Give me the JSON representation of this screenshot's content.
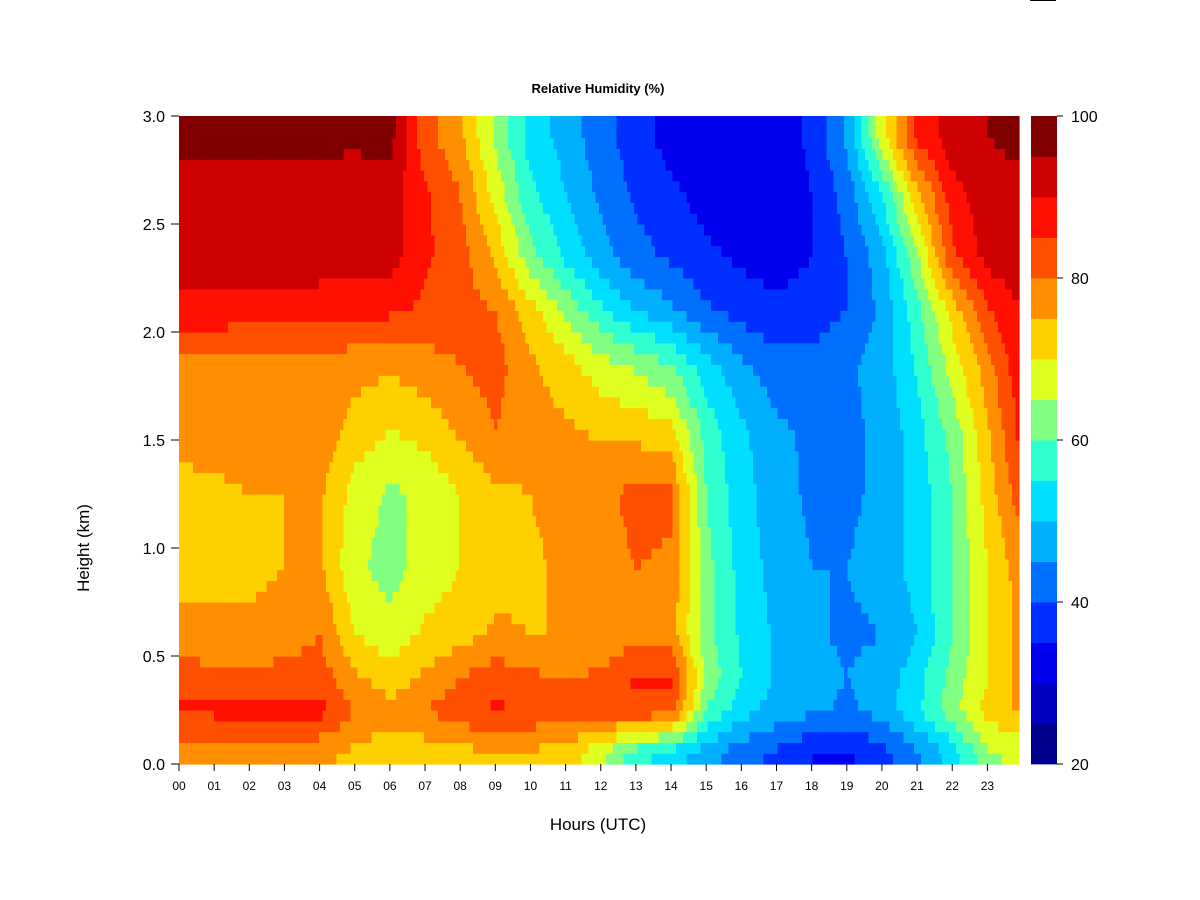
{
  "chart_data": {
    "type": "heatmap",
    "title": "Relative Humidity (%)",
    "xlabel": "Hours (UTC)",
    "ylabel": "Height (km)",
    "x_unit": "hours UTC",
    "y_unit": "km",
    "xlim": [
      0,
      23.9
    ],
    "ylim": [
      0,
      3.0
    ],
    "x_ticks": [
      {
        "value": 0,
        "label": "00"
      },
      {
        "value": 1,
        "label": "01"
      },
      {
        "value": 2,
        "label": "02"
      },
      {
        "value": 3,
        "label": "03"
      },
      {
        "value": 4,
        "label": "04"
      },
      {
        "value": 5,
        "label": "05"
      },
      {
        "value": 6,
        "label": "06"
      },
      {
        "value": 7,
        "label": "07"
      },
      {
        "value": 8,
        "label": "08"
      },
      {
        "value": 9,
        "label": "09"
      },
      {
        "value": 10,
        "label": "10"
      },
      {
        "value": 11,
        "label": "11"
      },
      {
        "value": 12,
        "label": "12"
      },
      {
        "value": 13,
        "label": "13"
      },
      {
        "value": 14,
        "label": "14"
      },
      {
        "value": 15,
        "label": "15"
      },
      {
        "value": 16,
        "label": "16"
      },
      {
        "value": 17,
        "label": "17"
      },
      {
        "value": 18,
        "label": "18"
      },
      {
        "value": 19,
        "label": "19"
      },
      {
        "value": 20,
        "label": "20"
      },
      {
        "value": 21,
        "label": "21"
      },
      {
        "value": 22,
        "label": "22"
      },
      {
        "value": 23,
        "label": "23"
      }
    ],
    "y_ticks": [
      {
        "value": 0.0,
        "label": "0.0"
      },
      {
        "value": 0.5,
        "label": "0.5"
      },
      {
        "value": 1.0,
        "label": "1.0"
      },
      {
        "value": 1.5,
        "label": "1.5"
      },
      {
        "value": 2.0,
        "label": "2.0"
      },
      {
        "value": 2.5,
        "label": "2.5"
      },
      {
        "value": 3.0,
        "label": "3.0"
      }
    ],
    "colorbar": {
      "range": [
        20,
        100
      ],
      "ticks": [
        {
          "value": 20,
          "label": "20"
        },
        {
          "value": 40,
          "label": "40"
        },
        {
          "value": 60,
          "label": "60"
        },
        {
          "value": 80,
          "label": "80"
        },
        {
          "value": 100,
          "label": "100"
        }
      ],
      "levels": [
        {
          "from": 20,
          "to": 25,
          "color": "#00008f"
        },
        {
          "from": 25,
          "to": 30,
          "color": "#0000c0"
        },
        {
          "from": 30,
          "to": 35,
          "color": "#0000ef"
        },
        {
          "from": 35,
          "to": 40,
          "color": "#0030ff"
        },
        {
          "from": 40,
          "to": 45,
          "color": "#0070ff"
        },
        {
          "from": 45,
          "to": 50,
          "color": "#00b0ff"
        },
        {
          "from": 50,
          "to": 55,
          "color": "#00dfff"
        },
        {
          "from": 55,
          "to": 60,
          "color": "#30ffcf"
        },
        {
          "from": 60,
          "to": 65,
          "color": "#80ff80"
        },
        {
          "from": 65,
          "to": 70,
          "color": "#dfff20"
        },
        {
          "from": 70,
          "to": 75,
          "color": "#ffd000"
        },
        {
          "from": 75,
          "to": 80,
          "color": "#ff8f00"
        },
        {
          "from": 80,
          "to": 85,
          "color": "#ff5000"
        },
        {
          "from": 85,
          "to": 90,
          "color": "#ff1000"
        },
        {
          "from": 90,
          "to": 95,
          "color": "#cf0000"
        },
        {
          "from": 95,
          "to": 100,
          "color": "#800000"
        }
      ]
    },
    "heights_km": [
      0.05,
      0.25,
      0.4,
      0.6,
      0.9,
      1.25,
      1.55,
      1.85,
      2.1,
      2.35,
      2.65,
      2.9
    ],
    "rows": [
      {
        "height_km": 0.05,
        "hours": [
          0,
          1,
          2,
          3,
          4,
          5,
          6,
          7,
          8,
          9,
          10,
          11,
          12,
          13,
          14,
          15,
          16,
          17,
          18,
          19,
          20,
          21,
          22,
          23,
          23.9
        ],
        "values": [
          77,
          78,
          79,
          78,
          76,
          74,
          72,
          72,
          73,
          75,
          74,
          73,
          66,
          57,
          52,
          47,
          42,
          39,
          35,
          34,
          38,
          44,
          52,
          64,
          66
        ]
      },
      {
        "height_km": 0.25,
        "hours": [
          0,
          1,
          2,
          3,
          4,
          5,
          6,
          7,
          8,
          9,
          10,
          11,
          12,
          13,
          14,
          15,
          16,
          17,
          18,
          19,
          20,
          21,
          22,
          23,
          23.9
        ],
        "values": [
          86,
          86,
          86,
          86,
          87,
          80,
          77,
          80,
          83,
          86,
          84,
          82,
          82,
          84,
          83,
          60,
          52,
          48,
          46,
          44,
          47,
          54,
          63,
          72,
          76
        ]
      },
      {
        "height_km": 0.4,
        "hours": [
          0,
          1,
          2,
          3,
          4,
          5,
          6,
          7,
          8,
          9,
          10,
          11,
          12,
          13,
          14,
          15,
          16,
          17,
          18,
          19,
          20,
          21,
          22,
          23,
          23.9
        ],
        "values": [
          83,
          82,
          82,
          82,
          83,
          76,
          72,
          76,
          80,
          83,
          81,
          80,
          81,
          86,
          86,
          64,
          55,
          49,
          47,
          45,
          47,
          53,
          62,
          70,
          76
        ]
      },
      {
        "height_km": 0.6,
        "hours": [
          0,
          1,
          2,
          3,
          4,
          5,
          6,
          7,
          8,
          9,
          10,
          11,
          12,
          13,
          14,
          15,
          16,
          17,
          18,
          19,
          20,
          21,
          22,
          23,
          23.9
        ],
        "values": [
          76,
          76,
          76,
          77,
          80,
          70,
          67,
          71,
          73,
          76,
          75,
          75,
          76,
          78,
          77,
          62,
          54,
          49,
          46,
          44,
          45,
          50,
          60,
          70,
          76
        ]
      },
      {
        "height_km": 0.9,
        "hours": [
          0,
          1,
          2,
          3,
          4,
          5,
          6,
          7,
          8,
          9,
          10,
          11,
          12,
          13,
          14,
          15,
          16,
          17,
          18,
          19,
          20,
          21,
          22,
          23,
          23.9
        ],
        "values": [
          74,
          74,
          74,
          75,
          76,
          66,
          63,
          67,
          70,
          73,
          74,
          76,
          77,
          80,
          79,
          62,
          53,
          48,
          45,
          45,
          47,
          52,
          60,
          70,
          77
        ]
      },
      {
        "height_km": 1.25,
        "hours": [
          0,
          1,
          2,
          3,
          4,
          5,
          6,
          7,
          8,
          9,
          10,
          11,
          12,
          13,
          14,
          15,
          16,
          17,
          18,
          19,
          20,
          21,
          22,
          23,
          23.9
        ],
        "values": [
          74,
          74,
          75,
          75,
          76,
          68,
          64,
          66,
          70,
          74,
          75,
          77,
          78,
          82,
          81,
          60,
          52,
          47,
          44,
          44,
          46,
          52,
          60,
          72,
          82
        ]
      },
      {
        "height_km": 1.55,
        "hours": [
          0,
          1,
          2,
          3,
          4,
          5,
          6,
          7,
          8,
          9,
          10,
          11,
          12,
          13,
          14,
          15,
          16,
          17,
          18,
          19,
          20,
          21,
          22,
          23,
          23.9
        ],
        "values": [
          76,
          77,
          77,
          77,
          78,
          73,
          70,
          72,
          76,
          80,
          77,
          76,
          74,
          73,
          71,
          58,
          51,
          46,
          44,
          44,
          46,
          53,
          62,
          74,
          86
        ]
      },
      {
        "height_km": 1.85,
        "hours": [
          0,
          1,
          2,
          3,
          4,
          5,
          6,
          7,
          8,
          9,
          10,
          11,
          12,
          13,
          14,
          15,
          16,
          17,
          18,
          19,
          20,
          21,
          22,
          23,
          23.9
        ],
        "values": [
          79,
          79,
          79,
          79,
          79,
          77,
          76,
          78,
          80,
          82,
          76,
          72,
          67,
          64,
          60,
          52,
          46,
          42,
          42,
          44,
          47,
          56,
          67,
          78,
          88
        ]
      },
      {
        "height_km": 2.1,
        "hours": [
          0,
          1,
          2,
          3,
          4,
          5,
          6,
          7,
          8,
          9,
          10,
          11,
          12,
          13,
          14,
          15,
          16,
          17,
          18,
          19,
          20,
          21,
          22,
          23,
          23.9
        ],
        "values": [
          88,
          88,
          87,
          87,
          87,
          86,
          86,
          84,
          82,
          80,
          72,
          64,
          56,
          50,
          46,
          41,
          38,
          36,
          37,
          40,
          46,
          58,
          72,
          84,
          90
        ]
      },
      {
        "height_km": 2.35,
        "hours": [
          0,
          1,
          2,
          3,
          4,
          5,
          6,
          7,
          8,
          9,
          10,
          11,
          12,
          13,
          14,
          15,
          16,
          17,
          18,
          19,
          20,
          21,
          22,
          23,
          23.9
        ],
        "values": [
          94,
          94,
          93,
          93,
          93,
          92,
          92,
          86,
          82,
          74,
          62,
          54,
          47,
          42,
          39,
          36,
          34,
          33,
          35,
          40,
          48,
          64,
          84,
          92,
          93
        ]
      },
      {
        "height_km": 2.65,
        "hours": [
          0,
          1,
          2,
          3,
          4,
          5,
          6,
          7,
          8,
          9,
          10,
          11,
          12,
          13,
          14,
          15,
          16,
          17,
          18,
          19,
          20,
          21,
          22,
          23,
          23.9
        ],
        "values": [
          92,
          92,
          91,
          91,
          91,
          90,
          92,
          86,
          80,
          68,
          56,
          50,
          44,
          39,
          36,
          33,
          32,
          32,
          35,
          42,
          55,
          74,
          88,
          93,
          94
        ]
      },
      {
        "height_km": 2.9,
        "hours": [
          0,
          1,
          2,
          3,
          4,
          5,
          6,
          7,
          8,
          9,
          10,
          11,
          12,
          13,
          14,
          15,
          16,
          17,
          18,
          19,
          20,
          21,
          22,
          23,
          23.9
        ],
        "values": [
          97,
          97,
          97,
          97,
          97,
          97,
          97,
          82,
          76,
          64,
          53,
          48,
          42,
          37,
          33,
          30,
          30,
          32,
          36,
          46,
          68,
          86,
          93,
          95,
          96
        ]
      }
    ]
  }
}
